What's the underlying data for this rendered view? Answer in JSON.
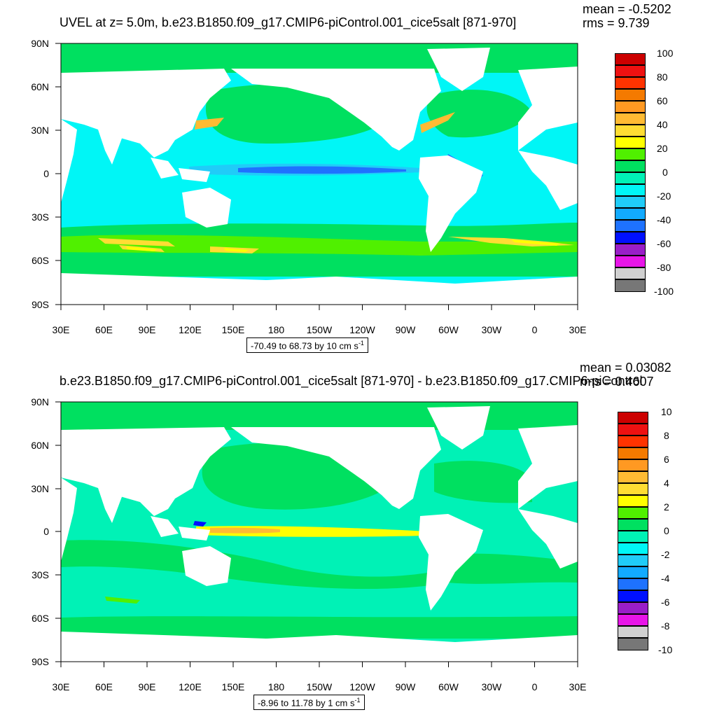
{
  "panels": [
    {
      "title": "UVEL at z=   5.0m, b.e23.B1850.f09_g17.CMIP6-piControl.001_cice5salt [871-970]",
      "mean": "mean = -0.5202",
      "rms": "rms = 9.739",
      "range_text": "-70.49 to 68.73 by 10 cm s",
      "range_unit_exp": "-1",
      "colorbar_labels": [
        "100",
        "80",
        "60",
        "40",
        "20",
        "0",
        "-20",
        "-40",
        "-60",
        "-80",
        "-100"
      ],
      "palette": [
        "#777777",
        "#d0d0d0",
        "#e815e8",
        "#9a1ec8",
        "#0010ff",
        "#1e72ff",
        "#12aaff",
        "#20ccf8",
        "#00f6f6",
        "#00f2b6",
        "#00e060",
        "#50f000",
        "#ffff00",
        "#ffdd33",
        "#ffbb33",
        "#ff9922",
        "#f47a00",
        "#ff3300",
        "#ee1111",
        "#cc0000"
      ]
    },
    {
      "title": "b.e23.B1850.f09_g17.CMIP6-piControl.001_cice5salt [871-970] - b.e23.B1850.f09_g17.CMIP6-piControl",
      "mean": "mean = 0.03082",
      "rms": "rms = 0.4607",
      "range_text": "-8.96 to 11.78 by 1 cm s",
      "range_unit_exp": "-1",
      "colorbar_labels": [
        "10",
        "8",
        "6",
        "4",
        "2",
        "0",
        "-2",
        "-4",
        "-6",
        "-8",
        "-10"
      ],
      "palette": [
        "#777777",
        "#d0d0d0",
        "#e815e8",
        "#9a1ec8",
        "#0010ff",
        "#1e72ff",
        "#12aaff",
        "#20ccf8",
        "#00f6f6",
        "#00f2b6",
        "#00e060",
        "#50f000",
        "#ffff00",
        "#ffdd33",
        "#ffbb33",
        "#ff9922",
        "#f47a00",
        "#ff3300",
        "#ee1111",
        "#cc0000"
      ]
    }
  ],
  "axes": {
    "x_labels": [
      "30E",
      "60E",
      "90E",
      "120E",
      "150E",
      "180",
      "150W",
      "120W",
      "90W",
      "60W",
      "30W",
      "0",
      "30E"
    ],
    "y_labels": [
      "90N",
      "60N",
      "30N",
      "0",
      "30S",
      "60S",
      "90S"
    ]
  },
  "colors": {
    "ocean_bg": "#00f2b6",
    "land": "#ffffff"
  }
}
